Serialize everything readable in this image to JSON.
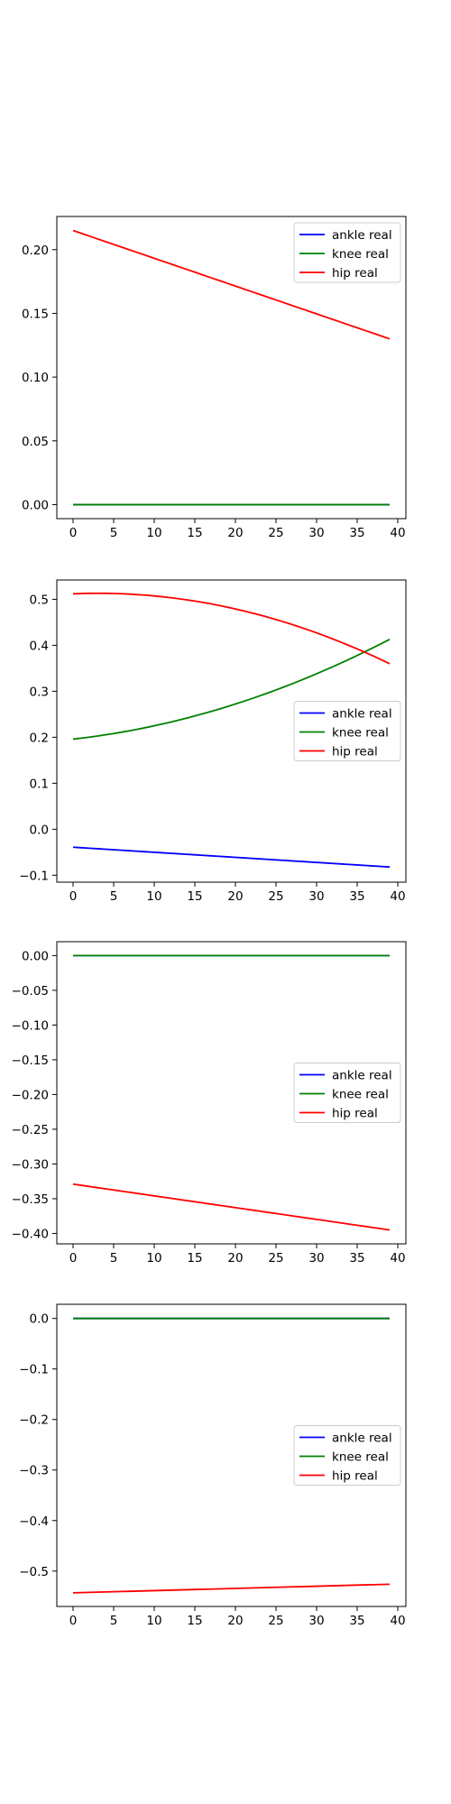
{
  "figure": {
    "background": "#ffffff"
  },
  "chart_data": [
    {
      "type": "line",
      "x": {
        "start": 0,
        "end": 39,
        "count": 40
      },
      "xlim": [
        -2,
        41
      ],
      "ylim": [
        -0.011,
        0.226
      ],
      "xticks": [
        0,
        5,
        10,
        15,
        20,
        25,
        30,
        35,
        40
      ],
      "yticks": [
        0.0,
        0.05,
        0.1,
        0.15,
        0.2
      ],
      "ytick_labels": [
        "0.00",
        "0.05",
        "0.10",
        "0.15",
        "0.20"
      ],
      "legend": {
        "position": "upper right"
      },
      "series": [
        {
          "name": "ankle real",
          "color": "#0000ff",
          "y0": 0.0,
          "y1": 0.0,
          "curve": 0
        },
        {
          "name": "knee real",
          "color": "#008000",
          "y0": 0.0,
          "y1": 0.0,
          "curve": 0
        },
        {
          "name": "hip real",
          "color": "#ff0000",
          "y0": 0.215,
          "y1": 0.13,
          "curve": 0
        }
      ]
    },
    {
      "type": "line",
      "x": {
        "start": 0,
        "end": 39,
        "count": 40
      },
      "xlim": [
        -2,
        41
      ],
      "ylim": [
        -0.115,
        0.542
      ],
      "xticks": [
        0,
        5,
        10,
        15,
        20,
        25,
        30,
        35,
        40
      ],
      "yticks": [
        -0.1,
        0.0,
        0.1,
        0.2,
        0.3,
        0.4,
        0.5
      ],
      "ytick_labels": [
        "−0.1",
        "0.0",
        "0.1",
        "0.2",
        "0.3",
        "0.4",
        "0.5"
      ],
      "legend": {
        "position": "center right"
      },
      "series": [
        {
          "name": "ankle real",
          "color": "#0000ff",
          "y0": -0.039,
          "y1": -0.082,
          "curve": 0
        },
        {
          "name": "knee real",
          "color": "#008000",
          "y0": 0.196,
          "y1": 0.413,
          "curve": -0.035
        },
        {
          "name": "hip real",
          "color": "#ff0000",
          "y0": 0.512,
          "y1": 0.36,
          "curve": 0.045
        }
      ]
    },
    {
      "type": "line",
      "x": {
        "start": 0,
        "end": 39,
        "count": 40
      },
      "xlim": [
        -2,
        41
      ],
      "ylim": [
        -0.415,
        0.02
      ],
      "xticks": [
        0,
        5,
        10,
        15,
        20,
        25,
        30,
        35,
        40
      ],
      "yticks": [
        0.0,
        -0.05,
        -0.1,
        -0.15,
        -0.2,
        -0.25,
        -0.3,
        -0.35,
        -0.4
      ],
      "ytick_labels": [
        "0.00",
        "−0.05",
        "−0.10",
        "−0.15",
        "−0.20",
        "−0.25",
        "−0.30",
        "−0.35",
        "−0.40"
      ],
      "legend": {
        "position": "center right"
      },
      "series": [
        {
          "name": "ankle real",
          "color": "#0000ff",
          "y0": 0.0,
          "y1": 0.0,
          "curve": 0
        },
        {
          "name": "knee real",
          "color": "#008000",
          "y0": 0.0,
          "y1": 0.0,
          "curve": 0
        },
        {
          "name": "hip real",
          "color": "#ff0000",
          "y0": -0.329,
          "y1": -0.395,
          "curve": 0
        }
      ]
    },
    {
      "type": "line",
      "x": {
        "start": 0,
        "end": 39,
        "count": 40
      },
      "xlim": [
        -2,
        41
      ],
      "ylim": [
        -0.57,
        0.028
      ],
      "xticks": [
        0,
        5,
        10,
        15,
        20,
        25,
        30,
        35,
        40
      ],
      "yticks": [
        0.0,
        -0.1,
        -0.2,
        -0.3,
        -0.4,
        -0.5
      ],
      "ytick_labels": [
        "0.0",
        "−0.1",
        "−0.2",
        "−0.3",
        "−0.4",
        "−0.5"
      ],
      "legend": {
        "position": "center right"
      },
      "series": [
        {
          "name": "ankle real",
          "color": "#0000ff",
          "y0": 0.0,
          "y1": 0.0,
          "curve": 0
        },
        {
          "name": "knee real",
          "color": "#008000",
          "y0": 0.0,
          "y1": 0.0,
          "curve": 0
        },
        {
          "name": "hip real",
          "color": "#ff0000",
          "y0": -0.543,
          "y1": -0.526,
          "curve": 0
        }
      ]
    }
  ]
}
